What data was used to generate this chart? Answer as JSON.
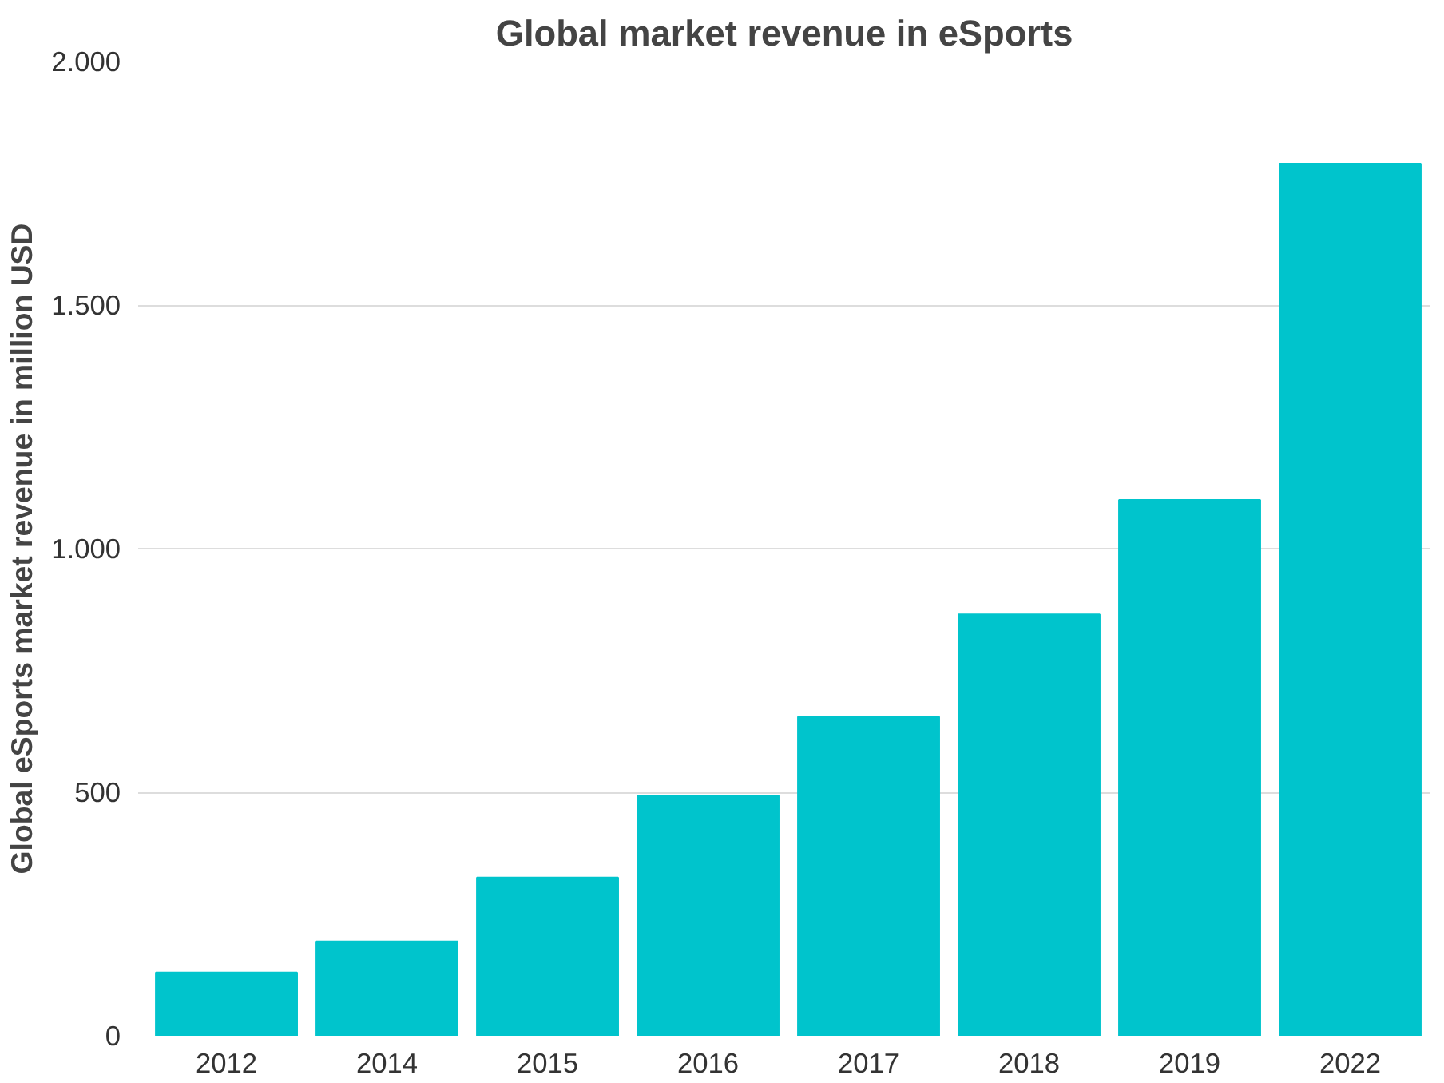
{
  "chart_data": {
    "type": "bar",
    "title": "Global market revenue in eSports",
    "ylabel": "Global eSports market revenue in million USD",
    "categories": [
      "2012",
      "2014",
      "2015",
      "2016",
      "2017",
      "2018",
      "2019",
      "2022"
    ],
    "values": [
      130,
      194,
      325,
      493,
      655,
      865,
      1100,
      1790
    ],
    "color": "#00c4cc",
    "ylim": [
      0,
      2000
    ],
    "yticks": [
      0,
      500,
      {
        "value": 1000,
        "label": "1.000"
      },
      {
        "value": 1500,
        "label": "1.500"
      },
      {
        "value": 2000,
        "label": "2.000"
      }
    ],
    "grid": "y"
  }
}
